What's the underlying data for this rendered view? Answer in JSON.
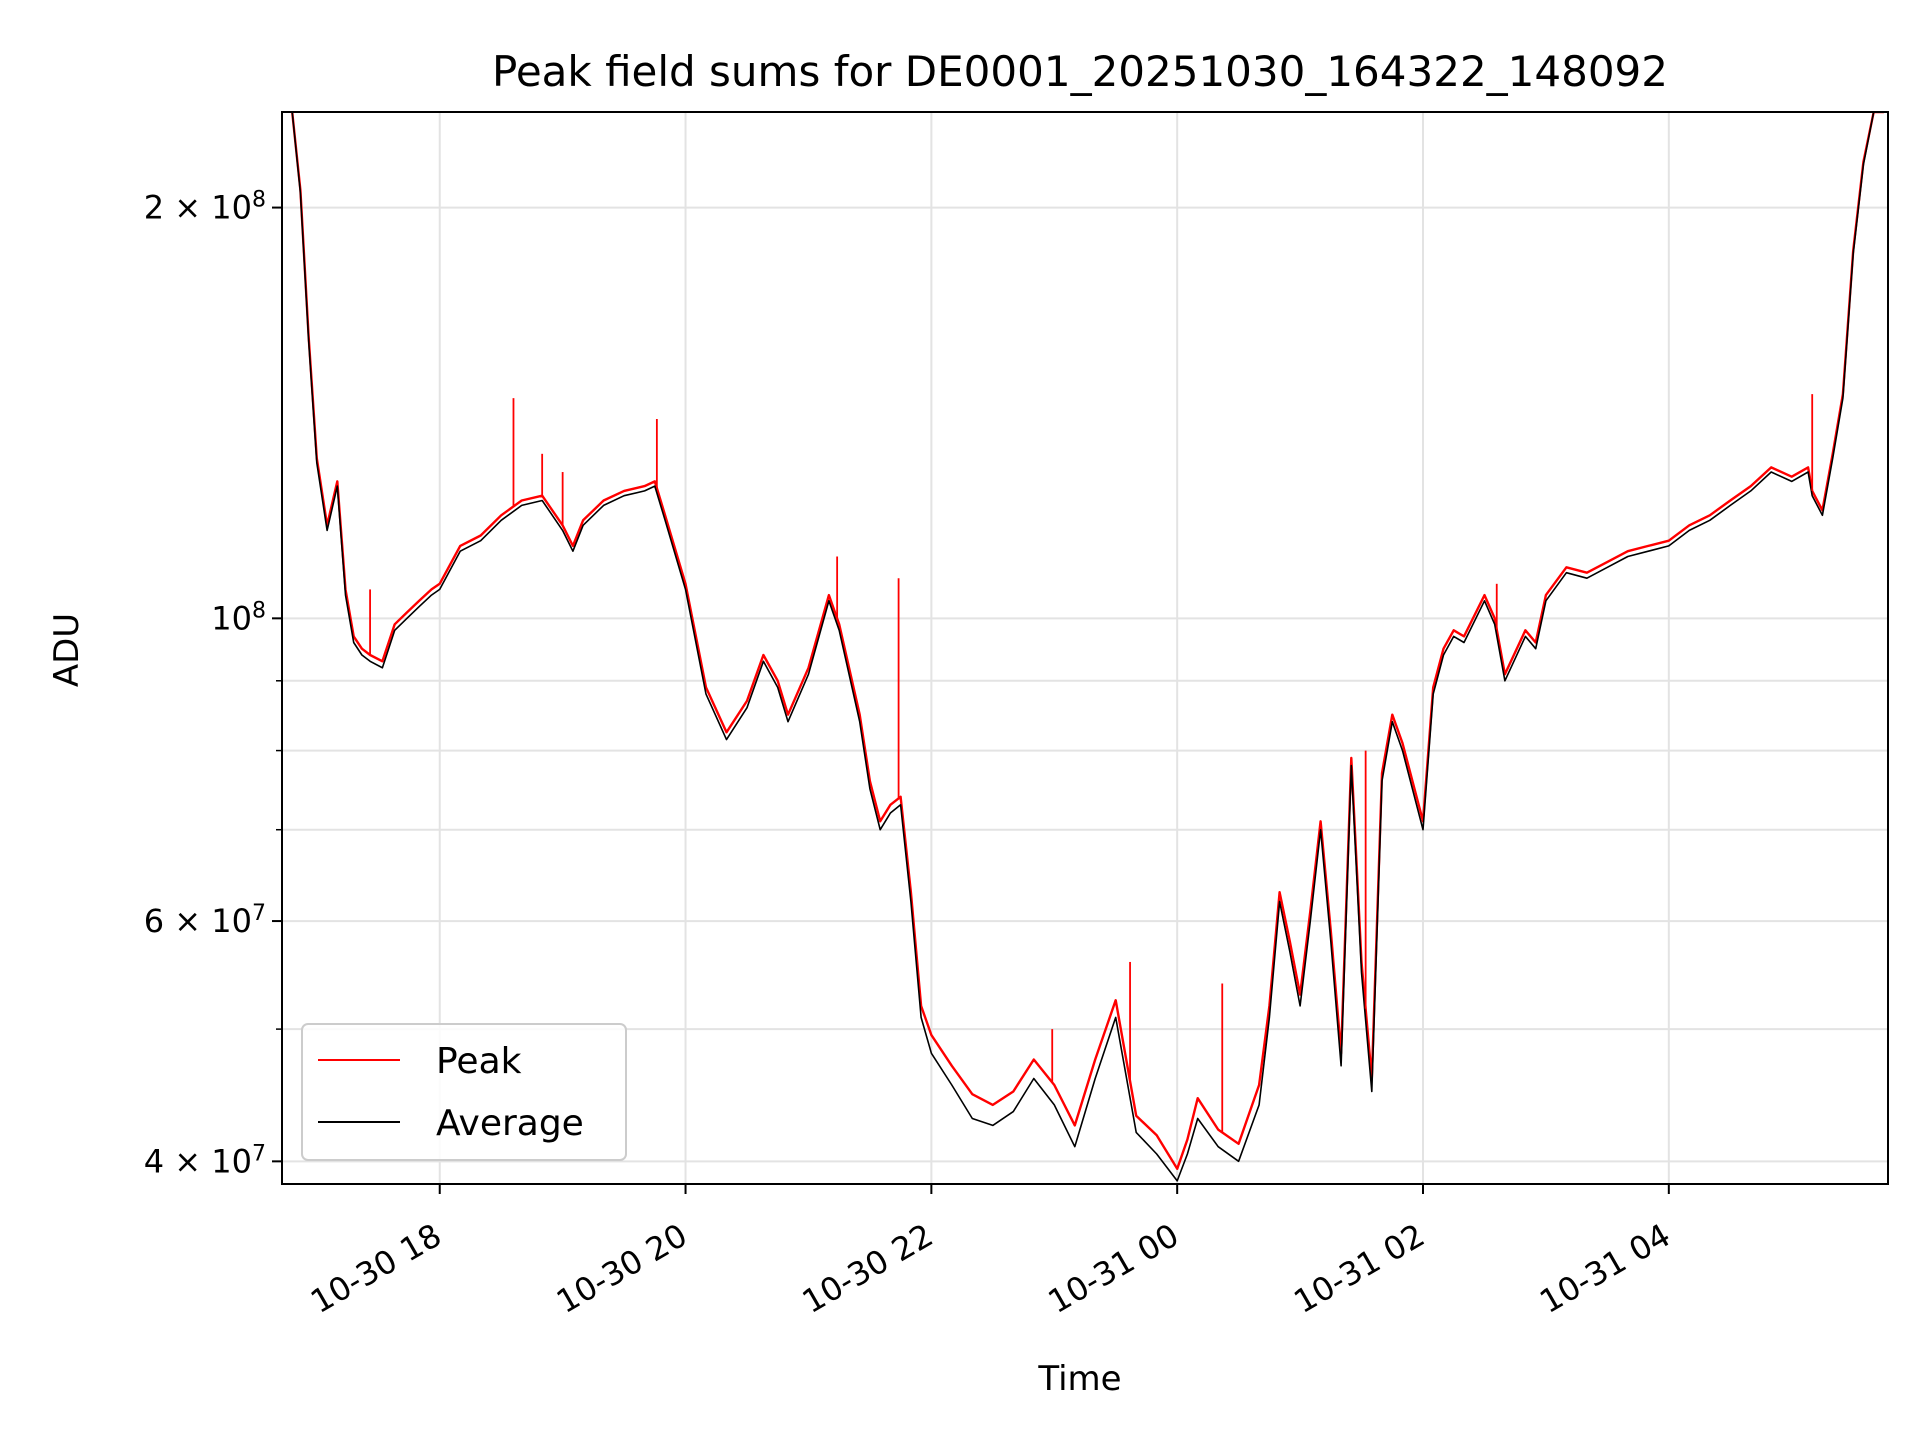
{
  "chart_data": {
    "type": "line",
    "title": "Peak field sums for DE0001_20251030_164322_148092",
    "xlabel": "Time",
    "ylabel": "ADU",
    "yscale": "log",
    "ylim": [
      38500000,
      235000000
    ],
    "xlim": [
      "2025-10-30 16:43",
      "2025-10-31 05:47"
    ],
    "grid": true,
    "legend_position": "lower-left",
    "x_ticks": [
      {
        "x": "2025-10-30 18:00",
        "label": "10-30 18"
      },
      {
        "x": "2025-10-30 20:00",
        "label": "10-30 20"
      },
      {
        "x": "2025-10-30 22:00",
        "label": "10-30 22"
      },
      {
        "x": "2025-10-31 00:00",
        "label": "10-31 00"
      },
      {
        "x": "2025-10-31 02:00",
        "label": "10-31 02"
      },
      {
        "x": "2025-10-31 04:00",
        "label": "10-31 04"
      }
    ],
    "y_ticks_major": [
      {
        "y": 40000000,
        "base": "4",
        "exp": "7"
      },
      {
        "y": 60000000,
        "base": "6",
        "exp": "7"
      },
      {
        "y": 100000000,
        "base": "",
        "exp": "8"
      },
      {
        "y": 200000000,
        "base": "2",
        "exp": "8"
      }
    ],
    "y_grid_minor": [
      50000000,
      70000000,
      80000000,
      90000000
    ],
    "series": [
      {
        "name": "Peak",
        "color": "#ff0000"
      },
      {
        "name": "Average",
        "color": "#000000"
      }
    ],
    "x": [
      "2025-10-30 16:48",
      "2025-10-30 16:52",
      "2025-10-30 16:56",
      "2025-10-30 17:00",
      "2025-10-30 17:05",
      "2025-10-30 17:10",
      "2025-10-30 17:14",
      "2025-10-30 17:18",
      "2025-10-30 17:22",
      "2025-10-30 17:26",
      "2025-10-30 17:32",
      "2025-10-30 17:38",
      "2025-10-30 17:44",
      "2025-10-30 17:50",
      "2025-10-30 17:56",
      "2025-10-30 18:00",
      "2025-10-30 18:10",
      "2025-10-30 18:20",
      "2025-10-30 18:30",
      "2025-10-30 18:40",
      "2025-10-30 18:50",
      "2025-10-30 19:00",
      "2025-10-30 19:05",
      "2025-10-30 19:10",
      "2025-10-30 19:20",
      "2025-10-30 19:30",
      "2025-10-30 19:40",
      "2025-10-30 19:45",
      "2025-10-30 19:50",
      "2025-10-30 20:00",
      "2025-10-30 20:10",
      "2025-10-30 20:20",
      "2025-10-30 20:30",
      "2025-10-30 20:38",
      "2025-10-30 20:45",
      "2025-10-30 20:50",
      "2025-10-30 21:00",
      "2025-10-30 21:10",
      "2025-10-30 21:15",
      "2025-10-30 21:25",
      "2025-10-30 21:30",
      "2025-10-30 21:35",
      "2025-10-30 21:40",
      "2025-10-30 21:45",
      "2025-10-30 21:50",
      "2025-10-30 21:55",
      "2025-10-30 22:00",
      "2025-10-30 22:10",
      "2025-10-30 22:20",
      "2025-10-30 22:30",
      "2025-10-30 22:40",
      "2025-10-30 22:50",
      "2025-10-30 23:00",
      "2025-10-30 23:10",
      "2025-10-30 23:20",
      "2025-10-30 23:30",
      "2025-10-30 23:40",
      "2025-10-30 23:50",
      "2025-10-31 00:00",
      "2025-10-31 00:05",
      "2025-10-31 00:10",
      "2025-10-31 00:20",
      "2025-10-31 00:30",
      "2025-10-31 00:40",
      "2025-10-31 00:45",
      "2025-10-31 00:50",
      "2025-10-31 00:55",
      "2025-10-31 01:00",
      "2025-10-31 01:05",
      "2025-10-31 01:10",
      "2025-10-31 01:15",
      "2025-10-31 01:20",
      "2025-10-31 01:25",
      "2025-10-31 01:30",
      "2025-10-31 01:35",
      "2025-10-31 01:40",
      "2025-10-31 01:45",
      "2025-10-31 01:50",
      "2025-10-31 02:00",
      "2025-10-31 02:05",
      "2025-10-31 02:10",
      "2025-10-31 02:15",
      "2025-10-31 02:20",
      "2025-10-31 02:30",
      "2025-10-31 02:35",
      "2025-10-31 02:40",
      "2025-10-31 02:50",
      "2025-10-31 02:55",
      "2025-10-31 03:00",
      "2025-10-31 03:10",
      "2025-10-31 03:20",
      "2025-10-31 03:30",
      "2025-10-31 03:40",
      "2025-10-31 03:50",
      "2025-10-31 04:00",
      "2025-10-31 04:10",
      "2025-10-31 04:20",
      "2025-10-31 04:30",
      "2025-10-31 04:40",
      "2025-10-31 04:50",
      "2025-10-31 05:00",
      "2025-10-31 05:08",
      "2025-10-31 05:10",
      "2025-10-31 05:15",
      "2025-10-31 05:20",
      "2025-10-31 05:25",
      "2025-10-31 05:30",
      "2025-10-31 05:35",
      "2025-10-31 05:40",
      "2025-10-31 05:45"
    ],
    "average": [
      235000000,
      205000000,
      160000000,
      130000000,
      116000000,
      125000000,
      104000000,
      96000000,
      94000000,
      93000000,
      92000000,
      98000000,
      100000000,
      102000000,
      104000000,
      105000000,
      112000000,
      114000000,
      118000000,
      121000000,
      122000000,
      116000000,
      112000000,
      117000000,
      121000000,
      123000000,
      124000000,
      125000000,
      118000000,
      105000000,
      88000000,
      81500000,
      86000000,
      93000000,
      89000000,
      84000000,
      91000000,
      103000000,
      98000000,
      84000000,
      75000000,
      70000000,
      72000000,
      73000000,
      62000000,
      51000000,
      48000000,
      45500000,
      43000000,
      42500000,
      43500000,
      46000000,
      44000000,
      41000000,
      46000000,
      51000000,
      42000000,
      40500000,
      38700000,
      40500000,
      43000000,
      41000000,
      40000000,
      44000000,
      51000000,
      62000000,
      57000000,
      52000000,
      60000000,
      70000000,
      58000000,
      47000000,
      78000000,
      55000000,
      45000000,
      76000000,
      84000000,
      80000000,
      70000000,
      88000000,
      94000000,
      97000000,
      96000000,
      103000000,
      99000000,
      90000000,
      97000000,
      95000000,
      103000000,
      108000000,
      107000000,
      109000000,
      111000000,
      112000000,
      113000000,
      116000000,
      118000000,
      121000000,
      124000000,
      128000000,
      126000000,
      128000000,
      123000000,
      119000000,
      131000000,
      145000000,
      185000000,
      215000000,
      235000000,
      235000000
    ],
    "peak": [
      235000000,
      206000000,
      161000000,
      131000000,
      117000000,
      126000000,
      105000000,
      97000000,
      95000000,
      94000000,
      93000000,
      99000000,
      101000000,
      103000000,
      105000000,
      106000000,
      113000000,
      115000000,
      119000000,
      122000000,
      123000000,
      117000000,
      113000000,
      118000000,
      122000000,
      124000000,
      125000000,
      126000000,
      119000000,
      106000000,
      89000000,
      82500000,
      87000000,
      94000000,
      90000000,
      85000000,
      92000000,
      104000000,
      99000000,
      85000000,
      76000000,
      71000000,
      73000000,
      74000000,
      63000000,
      52000000,
      49500000,
      47000000,
      44800000,
      44000000,
      45000000,
      47500000,
      45500000,
      42500000,
      47500000,
      52500000,
      43200000,
      41800000,
      39500000,
      41500000,
      44500000,
      42200000,
      41200000,
      45500000,
      52000000,
      63000000,
      58000000,
      53000000,
      61000000,
      71000000,
      59000000,
      48000000,
      79000000,
      56000000,
      46000000,
      77000000,
      85000000,
      81000000,
      71000000,
      89000000,
      95000000,
      98000000,
      97000000,
      104000000,
      100000000,
      91000000,
      98000000,
      96000000,
      104000000,
      109000000,
      108000000,
      110000000,
      112000000,
      113000000,
      114000000,
      117000000,
      119000000,
      122000000,
      125000000,
      129000000,
      127000000,
      129000000,
      124000000,
      120000000,
      132000000,
      146000000,
      186000000,
      216000000,
      235000000,
      235000000
    ],
    "spikes": [
      {
        "x": "2025-10-30 17:26",
        "y": 105000000
      },
      {
        "x": "2025-10-30 18:36",
        "y": 145000000
      },
      {
        "x": "2025-10-30 18:50",
        "y": 132000000
      },
      {
        "x": "2025-10-30 19:00",
        "y": 128000000
      },
      {
        "x": "2025-10-30 19:46",
        "y": 140000000
      },
      {
        "x": "2025-10-30 21:14",
        "y": 111000000
      },
      {
        "x": "2025-10-30 21:44",
        "y": 107000000
      },
      {
        "x": "2025-10-30 22:59",
        "y": 50000000
      },
      {
        "x": "2025-10-30 23:37",
        "y": 56000000
      },
      {
        "x": "2025-10-31 00:22",
        "y": 54000000
      },
      {
        "x": "2025-10-31 01:32",
        "y": 80000000
      },
      {
        "x": "2025-10-31 02:36",
        "y": 106000000
      },
      {
        "x": "2025-10-31 05:10",
        "y": 146000000
      }
    ]
  }
}
